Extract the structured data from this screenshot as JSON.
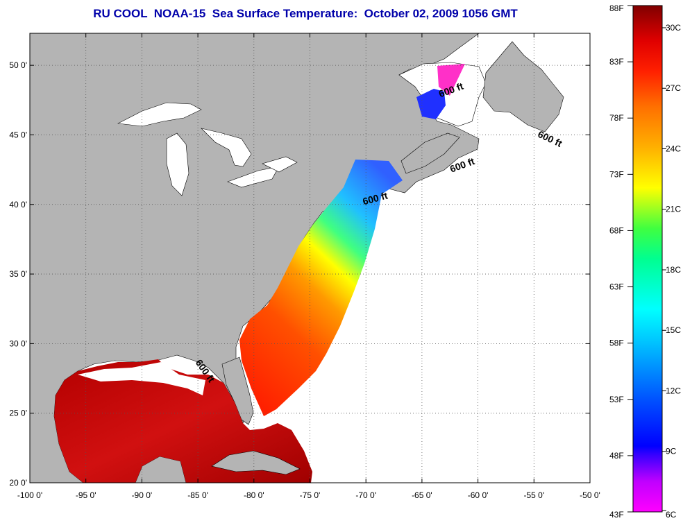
{
  "title": "RU COOL  NOAA-15  Sea Surface Temperature:  October 02, 2009 1056 GMT",
  "map": {
    "lon_range": [
      -100,
      -50
    ],
    "lat_range": [
      20,
      52.3
    ],
    "lon_ticks": [
      "-100 0'",
      "-95 0'",
      "-90 0'",
      "-85 0'",
      "-80 0'",
      "-75 0'",
      "-70 0'",
      "-65 0'",
      "-60 0'",
      "-55 0'",
      "-50 0'"
    ],
    "lat_ticks": [
      "20 0'",
      "25 0'",
      "30 0'",
      "35 0'",
      "40 0'",
      "45 0'",
      "50 0'"
    ],
    "land_color": "#b4b4b4",
    "no_data_color": "#ffffff",
    "grid": "dotted",
    "contour_label": "600 ft",
    "contour_labels": [
      {
        "text": "600 ft",
        "lon": -62.3,
        "lat": 48.0
      },
      {
        "text": "600 ft",
        "lon": -53.7,
        "lat": 44.5
      },
      {
        "text": "600 ft",
        "lon": -61.3,
        "lat": 42.6
      },
      {
        "text": "600 ft",
        "lon": -69.1,
        "lat": 40.2
      },
      {
        "text": "600 ft",
        "lon": -84.6,
        "lat": 27.9
      }
    ]
  },
  "colorbar": {
    "fahrenheit_labels": [
      "88F",
      "83F",
      "78F",
      "73F",
      "68F",
      "63F",
      "58F",
      "53F",
      "48F",
      "43F"
    ],
    "celsius_labels": [
      "30C",
      "27C",
      "24C",
      "21C",
      "18C",
      "15C",
      "12C",
      "9C",
      "6C"
    ],
    "range_c": [
      6,
      31.1
    ],
    "colors": [
      "#ff00c8",
      "#9b30ff",
      "#0000ff",
      "#0080ff",
      "#00ffff",
      "#00ff80",
      "#ffff00",
      "#ffa500",
      "#ff4000",
      "#ff0000",
      "#8b0000"
    ]
  }
}
